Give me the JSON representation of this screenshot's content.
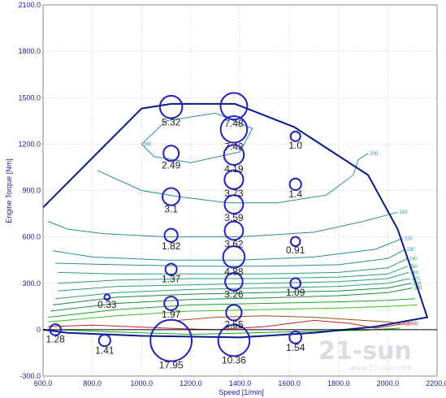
{
  "chart_data": {
    "type": "scatter",
    "title": "",
    "xlabel": "Speed [1/min]",
    "ylabel": "Engine Torque [Nm]",
    "xlim": [
      600,
      2200
    ],
    "ylim": [
      -300,
      2100
    ],
    "x_ticks": [
      "600.0",
      "800.0",
      "1000.0",
      "1200.0",
      "1400.0",
      "1600.0",
      "1800.0",
      "2000.0",
      "2200.0"
    ],
    "y_ticks": [
      "-300.0",
      "0",
      "300.0",
      "600.0",
      "900.0",
      "1200.0",
      "1500.0",
      "1800.0",
      "2100.0"
    ],
    "grid": true,
    "colors": {
      "axis": "#1c1c9c",
      "full_load_curve": "#0a1a8c",
      "points": "#2020c0",
      "grid": "#c9c9c9"
    },
    "full_load_curve": [
      {
        "x": 600,
        "y": 790
      },
      {
        "x": 1000,
        "y": 1430
      },
      {
        "x": 1120,
        "y": 1460
      },
      {
        "x": 1380,
        "y": 1460
      },
      {
        "x": 1620,
        "y": 1310
      },
      {
        "x": 1920,
        "y": 1000
      },
      {
        "x": 2040,
        "y": 650
      },
      {
        "x": 2100,
        "y": 370
      },
      {
        "x": 2160,
        "y": 80
      },
      {
        "x": 1950,
        "y": 20
      },
      {
        "x": 1700,
        "y": -20
      },
      {
        "x": 1400,
        "y": -50
      },
      {
        "x": 1000,
        "y": -40
      },
      {
        "x": 700,
        "y": -20
      },
      {
        "x": 600,
        "y": 0
      }
    ],
    "contours": [
      {
        "label": "190",
        "color": "#2a8aa0",
        "points": [
          {
            "x": 1000,
            "y": 1200
          },
          {
            "x": 1100,
            "y": 1350
          },
          {
            "x": 1300,
            "y": 1400
          },
          {
            "x": 1450,
            "y": 1300
          },
          {
            "x": 1400,
            "y": 1150
          },
          {
            "x": 1200,
            "y": 1080
          },
          {
            "x": 1050,
            "y": 1120
          },
          {
            "x": 1000,
            "y": 1200
          }
        ]
      },
      {
        "label": "200",
        "color": "#2a8aa0",
        "points": [
          {
            "x": 820,
            "y": 1030
          },
          {
            "x": 1000,
            "y": 900
          },
          {
            "x": 1150,
            "y": 860
          },
          {
            "x": 1350,
            "y": 820
          },
          {
            "x": 1550,
            "y": 820
          },
          {
            "x": 1750,
            "y": 870
          },
          {
            "x": 1860,
            "y": 1000
          },
          {
            "x": 1880,
            "y": 1100
          },
          {
            "x": 1920,
            "y": 1140
          }
        ]
      },
      {
        "label": "210",
        "color": "#2a8aa0",
        "points": [
          {
            "x": 620,
            "y": 700
          },
          {
            "x": 700,
            "y": 650
          },
          {
            "x": 850,
            "y": 620
          },
          {
            "x": 1100,
            "y": 600
          },
          {
            "x": 1400,
            "y": 600
          },
          {
            "x": 1700,
            "y": 630
          },
          {
            "x": 1900,
            "y": 700
          },
          {
            "x": 2040,
            "y": 760
          }
        ]
      },
      {
        "label": "220",
        "color": "#2a8aa0",
        "points": [
          {
            "x": 640,
            "y": 510
          },
          {
            "x": 800,
            "y": 470
          },
          {
            "x": 1100,
            "y": 450
          },
          {
            "x": 1400,
            "y": 450
          },
          {
            "x": 1700,
            "y": 470
          },
          {
            "x": 1950,
            "y": 520
          },
          {
            "x": 2060,
            "y": 590
          }
        ]
      },
      {
        "label": "230",
        "color": "#2a8aa0",
        "points": [
          {
            "x": 650,
            "y": 430
          },
          {
            "x": 900,
            "y": 420
          },
          {
            "x": 1200,
            "y": 410
          },
          {
            "x": 1500,
            "y": 410
          },
          {
            "x": 1800,
            "y": 420
          },
          {
            "x": 2000,
            "y": 460
          },
          {
            "x": 2070,
            "y": 520
          }
        ]
      },
      {
        "label": "240",
        "color": "#2aa070",
        "points": [
          {
            "x": 660,
            "y": 370
          },
          {
            "x": 900,
            "y": 360
          },
          {
            "x": 1200,
            "y": 360
          },
          {
            "x": 1500,
            "y": 360
          },
          {
            "x": 1800,
            "y": 370
          },
          {
            "x": 2000,
            "y": 400
          },
          {
            "x": 2080,
            "y": 460
          }
        ]
      },
      {
        "label": "250",
        "color": "#2aa070",
        "points": [
          {
            "x": 660,
            "y": 300
          },
          {
            "x": 900,
            "y": 320
          },
          {
            "x": 1200,
            "y": 330
          },
          {
            "x": 1500,
            "y": 330
          },
          {
            "x": 1800,
            "y": 340
          },
          {
            "x": 2000,
            "y": 360
          },
          {
            "x": 2080,
            "y": 410
          }
        ]
      },
      {
        "label": "260",
        "color": "#2aa070",
        "points": [
          {
            "x": 660,
            "y": 250
          },
          {
            "x": 900,
            "y": 280
          },
          {
            "x": 1200,
            "y": 290
          },
          {
            "x": 1500,
            "y": 300
          },
          {
            "x": 1800,
            "y": 310
          },
          {
            "x": 2000,
            "y": 330
          },
          {
            "x": 2085,
            "y": 370
          }
        ]
      },
      {
        "label": "270",
        "color": "#2aa070",
        "points": [
          {
            "x": 650,
            "y": 200
          },
          {
            "x": 900,
            "y": 240
          },
          {
            "x": 1200,
            "y": 260
          },
          {
            "x": 1500,
            "y": 270
          },
          {
            "x": 1800,
            "y": 280
          },
          {
            "x": 2000,
            "y": 300
          },
          {
            "x": 2090,
            "y": 330
          }
        ]
      },
      {
        "label": "280",
        "color": "#1a8a40",
        "points": [
          {
            "x": 640,
            "y": 160
          },
          {
            "x": 900,
            "y": 210
          },
          {
            "x": 1200,
            "y": 230
          },
          {
            "x": 1500,
            "y": 240
          },
          {
            "x": 1800,
            "y": 250
          },
          {
            "x": 2000,
            "y": 270
          },
          {
            "x": 2095,
            "y": 300
          }
        ]
      },
      {
        "label": "300",
        "color": "#1a8a40",
        "points": [
          {
            "x": 630,
            "y": 120
          },
          {
            "x": 900,
            "y": 170
          },
          {
            "x": 1200,
            "y": 195
          },
          {
            "x": 1500,
            "y": 205
          },
          {
            "x": 1800,
            "y": 220
          },
          {
            "x": 2000,
            "y": 240
          },
          {
            "x": 2100,
            "y": 270
          }
        ]
      },
      {
        "label": "",
        "color": "#1aa02a",
        "points": [
          {
            "x": 620,
            "y": 80
          },
          {
            "x": 900,
            "y": 130
          },
          {
            "x": 1200,
            "y": 160
          },
          {
            "x": 1500,
            "y": 170
          },
          {
            "x": 1800,
            "y": 180
          },
          {
            "x": 2000,
            "y": 190
          },
          {
            "x": 2110,
            "y": 200
          }
        ]
      },
      {
        "label": "",
        "color": "#3ac020",
        "points": [
          {
            "x": 620,
            "y": 50
          },
          {
            "x": 900,
            "y": 90
          },
          {
            "x": 1200,
            "y": 120
          },
          {
            "x": 1500,
            "y": 130
          },
          {
            "x": 1800,
            "y": 140
          },
          {
            "x": 2000,
            "y": 150
          },
          {
            "x": 2120,
            "y": 160
          }
        ]
      },
      {
        "label": "750",
        "color": "#a05010",
        "points": [
          {
            "x": 1150,
            "y": 60
          },
          {
            "x": 1300,
            "y": 80
          },
          {
            "x": 1500,
            "y": 90
          },
          {
            "x": 1700,
            "y": 80
          },
          {
            "x": 1900,
            "y": 60
          },
          {
            "x": 2000,
            "y": 50
          },
          {
            "x": 2050,
            "y": 40
          }
        ]
      },
      {
        "label": "1000",
        "color": "#c02020",
        "points": [
          {
            "x": 620,
            "y": 20
          },
          {
            "x": 800,
            "y": 30
          },
          {
            "x": 1100,
            "y": 10
          },
          {
            "x": 1300,
            "y": 0
          },
          {
            "x": 1500,
            "y": 20
          },
          {
            "x": 1700,
            "y": 60
          },
          {
            "x": 1850,
            "y": 40
          },
          {
            "x": 1950,
            "y": 10
          },
          {
            "x": 2070,
            "y": 40
          }
        ]
      },
      {
        "label": "",
        "color": "#18a018",
        "points": [
          {
            "x": 650,
            "y": 0
          },
          {
            "x": 900,
            "y": -15
          },
          {
            "x": 1200,
            "y": -30
          },
          {
            "x": 1450,
            "y": -20
          },
          {
            "x": 1700,
            "y": -10
          },
          {
            "x": 1900,
            "y": -5
          },
          {
            "x": 2050,
            "y": 10
          }
        ]
      }
    ],
    "points": [
      {
        "x": 1120,
        "y": 1440,
        "value": 5.32,
        "label": "5.32"
      },
      {
        "x": 1375,
        "y": 1445,
        "value": 7.48,
        "label": "7.48"
      },
      {
        "x": 1375,
        "y": 1295,
        "value": 7.42,
        "label": "7.42"
      },
      {
        "x": 1625,
        "y": 1250,
        "value": 1.0,
        "label": "1.0"
      },
      {
        "x": 1120,
        "y": 1140,
        "value": 2.49,
        "label": "2.49"
      },
      {
        "x": 1375,
        "y": 1130,
        "value": 4.19,
        "label": "4.19"
      },
      {
        "x": 1375,
        "y": 970,
        "value": 3.73,
        "label": "3.73"
      },
      {
        "x": 1625,
        "y": 940,
        "value": 1.4,
        "label": "1.4"
      },
      {
        "x": 1120,
        "y": 860,
        "value": 3.1,
        "label": "3.1"
      },
      {
        "x": 1375,
        "y": 810,
        "value": 3.59,
        "label": "3.59"
      },
      {
        "x": 1120,
        "y": 610,
        "value": 1.82,
        "label": "1.82"
      },
      {
        "x": 1375,
        "y": 640,
        "value": 3.62,
        "label": "3.62"
      },
      {
        "x": 1625,
        "y": 570,
        "value": 0.91,
        "label": "0.91"
      },
      {
        "x": 1375,
        "y": 470,
        "value": 4.88,
        "label": "4.88"
      },
      {
        "x": 1120,
        "y": 390,
        "value": 1.37,
        "label": "1.37"
      },
      {
        "x": 1375,
        "y": 310,
        "value": 3.26,
        "label": "3.26"
      },
      {
        "x": 1625,
        "y": 300,
        "value": 1.09,
        "label": "1.09"
      },
      {
        "x": 860,
        "y": 210,
        "value": 0.33,
        "label": "0.33"
      },
      {
        "x": 1120,
        "y": 170,
        "value": 1.97,
        "label": "1.97"
      },
      {
        "x": 1375,
        "y": 110,
        "value": 2.55,
        "label": "2.55"
      },
      {
        "x": 650,
        "y": 0,
        "value": 1.28,
        "label": "1.28"
      },
      {
        "x": 850,
        "y": -70,
        "value": 1.41,
        "label": "1.41"
      },
      {
        "x": 1120,
        "y": -70,
        "value": 17.95,
        "label": "17.95"
      },
      {
        "x": 1375,
        "y": -70,
        "value": 10.36,
        "label": "10.36"
      },
      {
        "x": 1625,
        "y": -50,
        "value": 1.54,
        "label": "1.54"
      }
    ],
    "watermark": {
      "main": "21-sun",
      "sub": "www.21-sun.com"
    }
  }
}
